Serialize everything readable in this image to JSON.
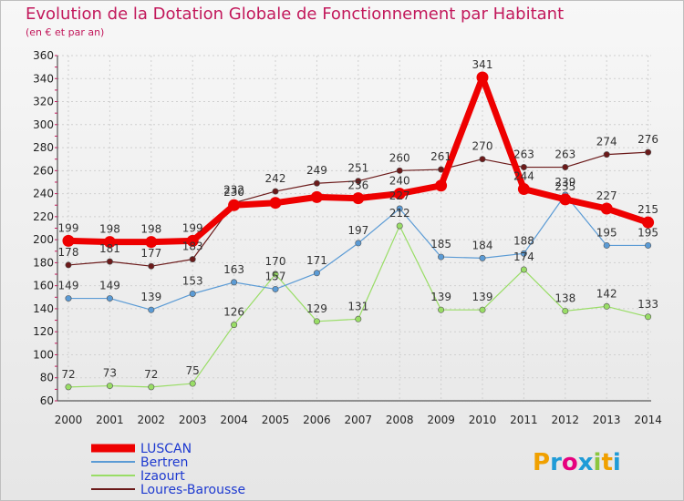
{
  "chart_data": {
    "type": "line",
    "title": "Evolution de la Dotation Globale de Fonctionnement par Habitant",
    "subtitle": "(en € et par an)",
    "xlabel": "",
    "ylabel": "",
    "x": [
      "2000",
      "2001",
      "2002",
      "2003",
      "2004",
      "2005",
      "2006",
      "2007",
      "2008",
      "2009",
      "2010",
      "2011",
      "2012",
      "2013",
      "2014"
    ],
    "ylim": [
      60,
      360
    ],
    "yticks": [
      60,
      80,
      100,
      120,
      140,
      160,
      180,
      200,
      220,
      240,
      260,
      280,
      300,
      320,
      340,
      360
    ],
    "grid": true,
    "legend_position": "bottom-left",
    "series": [
      {
        "name": "Loures-Barousse",
        "color": "#6b1a1a",
        "values": [
          178,
          181,
          177,
          183,
          232,
          242,
          249,
          251,
          260,
          261,
          270,
          263,
          263,
          274,
          276
        ]
      },
      {
        "name": "Izaourt",
        "color": "#99dd66",
        "values": [
          72,
          73,
          72,
          75,
          126,
          170,
          129,
          131,
          212,
          139,
          139,
          174,
          138,
          142,
          133
        ]
      },
      {
        "name": "Bertren",
        "color": "#5b9bd5",
        "values": [
          149,
          149,
          139,
          153,
          163,
          157,
          171,
          197,
          227,
          185,
          184,
          188,
          239,
          195,
          195
        ]
      },
      {
        "name": "LUSCAN",
        "color": "#ee0000",
        "values": [
          199,
          198,
          198,
          199,
          230,
          232,
          237,
          236,
          240,
          247,
          341,
          244,
          235,
          227,
          215
        ]
      }
    ],
    "labels": {
      "LUSCAN": [
        "199",
        "198",
        "198",
        "199",
        "230",
        "",
        "",
        "236",
        "240",
        "",
        "341",
        "244",
        "235",
        "227",
        "215"
      ],
      "Bertren": [
        "149",
        "149",
        "139",
        "153",
        "163",
        "157",
        "171",
        "197",
        "227",
        "185",
        "184",
        "188",
        "239",
        "195",
        "195"
      ],
      "Izaourt": [
        "72",
        "73",
        "72",
        "75",
        "126",
        "170",
        "129",
        "131",
        "212",
        "139",
        "139",
        "174",
        "138",
        "142",
        "133"
      ],
      "Loures-Barousse": [
        "178",
        "181",
        "177",
        "183",
        "232",
        "242",
        "249",
        "251",
        "260",
        "261",
        "270",
        "263",
        "263",
        "274",
        "276"
      ]
    },
    "legend_order": [
      "LUSCAN",
      "Bertren",
      "Izaourt",
      "Loures-Barousse"
    ]
  },
  "logo": {
    "text": "Proxiti"
  }
}
